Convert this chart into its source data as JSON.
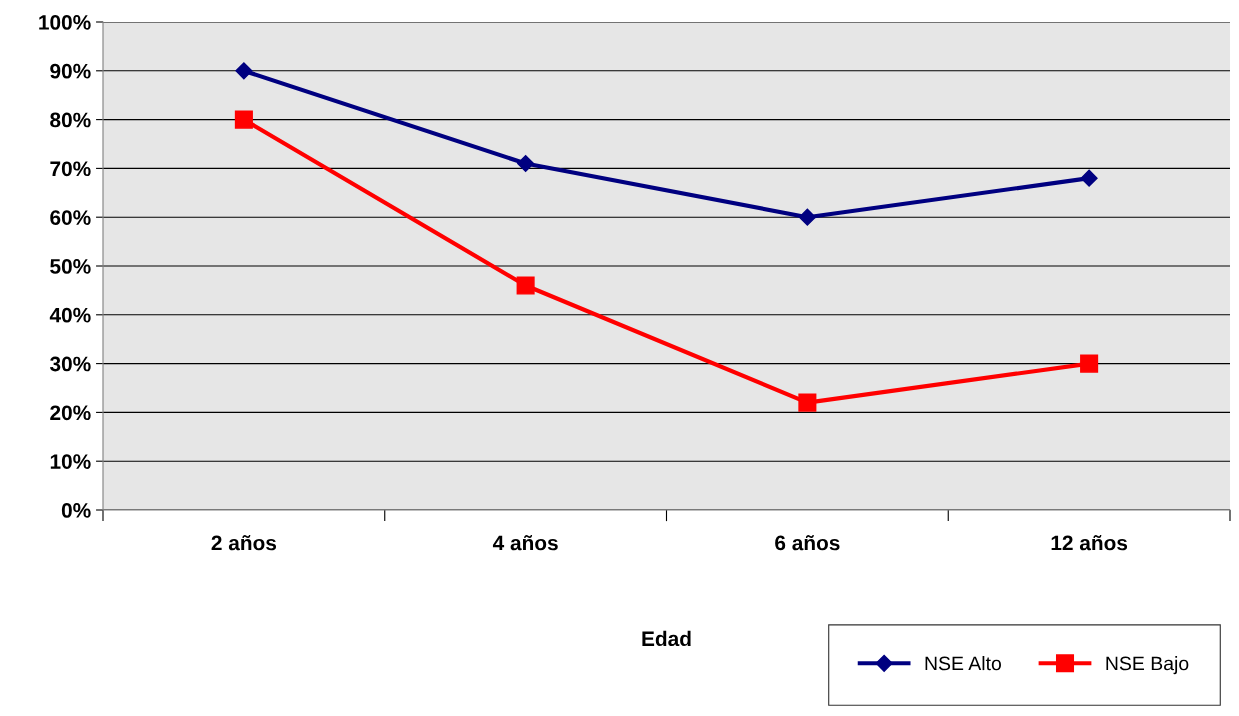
{
  "chart_data": {
    "type": "line",
    "xlabel": "Edad",
    "categories": [
      "2 años",
      "4 años",
      "6 años",
      "12 años"
    ],
    "series": [
      {
        "name": "NSE Alto",
        "color": "#000080",
        "marker": "diamond",
        "values": [
          90,
          71,
          60,
          68
        ]
      },
      {
        "name": "NSE Bajo",
        "color": "#ff0000",
        "marker": "square",
        "values": [
          80,
          46,
          22,
          30
        ]
      }
    ],
    "ylim": [
      0,
      100
    ],
    "yticks": [
      {
        "value": 0,
        "label": "0%"
      },
      {
        "value": 10,
        "label": "10%"
      },
      {
        "value": 20,
        "label": "20%"
      },
      {
        "value": 30,
        "label": "30%"
      },
      {
        "value": 40,
        "label": "40%"
      },
      {
        "value": 50,
        "label": "50%"
      },
      {
        "value": 60,
        "label": "60%"
      },
      {
        "value": 70,
        "label": "70%"
      },
      {
        "value": 80,
        "label": "80%"
      },
      {
        "value": 90,
        "label": "90%"
      },
      {
        "value": 100,
        "label": "100%"
      }
    ],
    "grid": "y",
    "legend": "bottom right",
    "line_style": "solid"
  }
}
